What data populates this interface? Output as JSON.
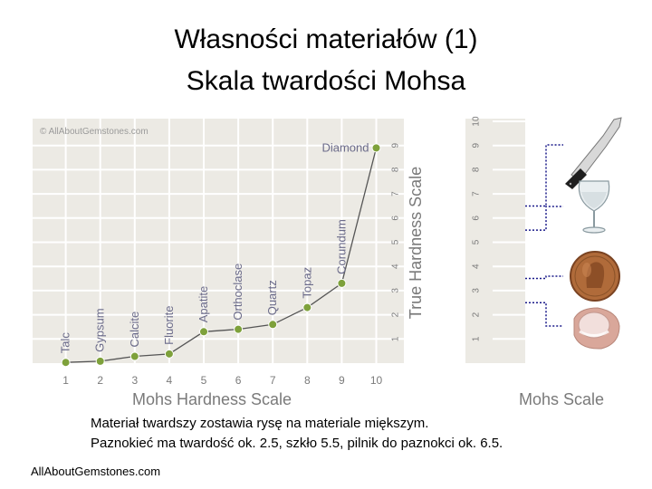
{
  "slide": {
    "title_line1": "Własności materiałów (1)",
    "title_line2": "Skala twardości Mohsa",
    "caption_line1": "Materiał twardszy zostawia rysę na materiale miększym.",
    "caption_line2": "Paznokieć ma twardość ok. 2.5, szkło 5.5, pilnik do paznokci ok. 6.5.",
    "source": "AllAboutGemstones.com"
  },
  "chart_data": [
    {
      "type": "line",
      "watermark": "© AllAboutGemstones.com",
      "xlabel": "Mohs Hardness Scale",
      "ylabel": "True Hardness Scale",
      "x": [
        1,
        2,
        3,
        4,
        5,
        6,
        7,
        8,
        9,
        10
      ],
      "x_ticks": [
        "1",
        "2",
        "3",
        "4",
        "5",
        "6",
        "7",
        "8",
        "9",
        "10"
      ],
      "y_ticks": [
        "1",
        "2",
        "3",
        "4",
        "5",
        "6",
        "7",
        "8",
        "9"
      ],
      "series": [
        {
          "labels": [
            "Talc",
            "Gypsum",
            "Calcite",
            "Fluorite",
            "Apatite",
            "Orthoclase",
            "Quartz",
            "Topaz",
            "Corundum",
            "Diamond"
          ],
          "values": [
            0.03,
            0.08,
            0.28,
            0.38,
            1.3,
            1.4,
            1.6,
            2.3,
            3.3,
            8.9
          ]
        }
      ],
      "xlim": [
        0,
        10.5
      ],
      "ylim": [
        0,
        10
      ],
      "grid": true,
      "colors": {
        "plot_bg": "#eceae4",
        "grid": "#ffffff",
        "line": "#555555",
        "marker": "#7ea13b",
        "text": "#7a7a7a",
        "label": "#6b6b8a"
      }
    },
    {
      "type": "table",
      "title": "Mohs Scale",
      "ticks": [
        "1",
        "2",
        "3",
        "4",
        "5",
        "6",
        "7",
        "8",
        "9",
        "10"
      ],
      "items": [
        {
          "name": "fingernail-icon",
          "mohs": 2.5
        },
        {
          "name": "penny-icon",
          "mohs": 3.5
        },
        {
          "name": "glass-icon",
          "mohs": 5.5
        },
        {
          "name": "knife-icon",
          "mohs": 6.5
        }
      ]
    }
  ]
}
